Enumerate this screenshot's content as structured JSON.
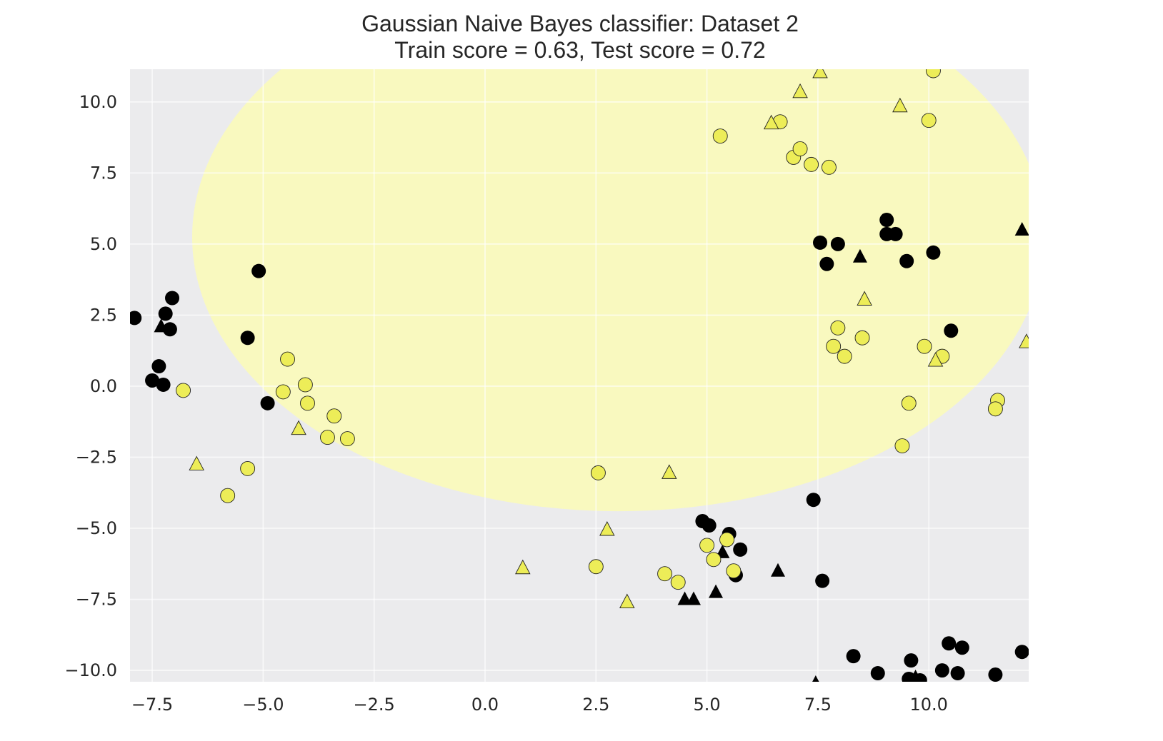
{
  "chart_data": {
    "type": "scatter",
    "title": "Gaussian Naive Bayes classifier: Dataset 2",
    "subtitle": "Train score = 0.63, Test score = 0.72",
    "xlabel": "",
    "ylabel": "",
    "xlim": [
      -8.0,
      12.25
    ],
    "ylim": [
      -10.4,
      11.15
    ],
    "xticks": [
      -7.5,
      -5.0,
      -2.5,
      0.0,
      2.5,
      5.0,
      7.5,
      10.0
    ],
    "xtick_labels": [
      "−7.5",
      "−5.0",
      "−2.5",
      "0.0",
      "2.5",
      "5.0",
      "7.5",
      "10.0"
    ],
    "yticks": [
      10.0,
      7.5,
      5.0,
      2.5,
      0.0,
      -2.5,
      -5.0,
      -7.5,
      -10.0
    ],
    "ytick_labels": [
      "10.0",
      "7.5",
      "5.0",
      "2.5",
      "0.0",
      "−2.5",
      "−5.0",
      "−7.5",
      "−10.0"
    ],
    "grid": true,
    "colors": {
      "plot_background": "#ebebed",
      "decision_region": "#f9f9bf",
      "grid": "#ffffff",
      "class_0": "#000000",
      "class_1": "#eded58",
      "marker_edge": "#222222"
    },
    "decision_region": {
      "shape": "ellipse",
      "center": [
        3.0,
        5.25
      ],
      "radius_x": 9.6,
      "radius_y": 9.65
    },
    "series": [
      {
        "marker": "circle",
        "color": "#000000",
        "points": [
          [
            -7.9,
            2.4
          ],
          [
            -7.2,
            2.55
          ],
          [
            -7.05,
            3.1
          ],
          [
            -7.1,
            2.0
          ],
          [
            -7.35,
            0.7
          ],
          [
            -7.5,
            0.2
          ],
          [
            -7.25,
            0.05
          ],
          [
            -5.1,
            4.05
          ],
          [
            -5.35,
            1.7
          ],
          [
            -4.9,
            -0.6
          ],
          [
            9.05,
            5.85
          ],
          [
            9.05,
            5.35
          ],
          [
            9.25,
            5.35
          ],
          [
            7.55,
            5.05
          ],
          [
            7.95,
            5.0
          ],
          [
            7.7,
            4.3
          ],
          [
            9.5,
            4.4
          ],
          [
            10.1,
            4.7
          ],
          [
            10.5,
            1.95
          ],
          [
            7.4,
            -4.0
          ],
          [
            4.9,
            -4.75
          ],
          [
            5.05,
            -4.9
          ],
          [
            5.5,
            -5.2
          ],
          [
            5.75,
            -5.75
          ],
          [
            5.65,
            -6.65
          ],
          [
            7.6,
            -6.85
          ],
          [
            8.3,
            -9.5
          ],
          [
            8.85,
            -10.1
          ],
          [
            9.55,
            -10.3
          ],
          [
            9.6,
            -9.65
          ],
          [
            9.8,
            -10.35
          ],
          [
            10.3,
            -10.0
          ],
          [
            10.45,
            -9.05
          ],
          [
            10.65,
            -10.1
          ],
          [
            10.75,
            -9.2
          ],
          [
            11.5,
            -10.15
          ],
          [
            12.1,
            -9.35
          ]
        ]
      },
      {
        "marker": "triangle",
        "color": "#000000",
        "points": [
          [
            -7.3,
            2.1
          ],
          [
            8.45,
            4.55
          ],
          [
            12.1,
            5.5
          ],
          [
            5.35,
            -5.85
          ],
          [
            4.5,
            -7.5
          ],
          [
            4.7,
            -7.5
          ],
          [
            5.2,
            -7.25
          ],
          [
            6.6,
            -6.5
          ],
          [
            7.45,
            -10.45
          ],
          [
            9.7,
            -10.25
          ]
        ]
      },
      {
        "marker": "circle",
        "color": "#eded58",
        "points": [
          [
            -6.8,
            -0.15
          ],
          [
            -4.45,
            0.95
          ],
          [
            -4.55,
            -0.2
          ],
          [
            -4.05,
            0.05
          ],
          [
            -4.0,
            -0.6
          ],
          [
            -3.4,
            -1.05
          ],
          [
            -3.55,
            -1.8
          ],
          [
            -3.1,
            -1.85
          ],
          [
            -5.35,
            -2.9
          ],
          [
            -5.8,
            -3.85
          ],
          [
            5.3,
            8.8
          ],
          [
            6.65,
            9.3
          ],
          [
            6.95,
            8.05
          ],
          [
            7.1,
            8.35
          ],
          [
            7.35,
            7.8
          ],
          [
            7.75,
            7.7
          ],
          [
            10.1,
            11.1
          ],
          [
            10.0,
            9.35
          ],
          [
            7.95,
            2.05
          ],
          [
            7.85,
            1.4
          ],
          [
            8.1,
            1.05
          ],
          [
            8.5,
            1.7
          ],
          [
            9.9,
            1.4
          ],
          [
            10.3,
            1.05
          ],
          [
            9.55,
            -0.6
          ],
          [
            9.4,
            -2.1
          ],
          [
            11.55,
            -0.5
          ],
          [
            11.5,
            -0.8
          ],
          [
            2.55,
            -3.05
          ],
          [
            2.5,
            -6.35
          ],
          [
            4.05,
            -6.6
          ],
          [
            4.35,
            -6.9
          ],
          [
            5.0,
            -5.6
          ],
          [
            5.15,
            -6.1
          ],
          [
            5.45,
            -5.4
          ],
          [
            5.6,
            -6.5
          ]
        ]
      },
      {
        "marker": "triangle",
        "color": "#eded58",
        "points": [
          [
            7.55,
            11.05
          ],
          [
            7.1,
            10.35
          ],
          [
            6.45,
            9.25
          ],
          [
            9.35,
            9.85
          ],
          [
            8.55,
            3.05
          ],
          [
            12.2,
            1.55
          ],
          [
            10.15,
            0.9
          ],
          [
            -4.2,
            -1.5
          ],
          [
            -6.5,
            -2.75
          ],
          [
            4.15,
            -3.05
          ],
          [
            2.75,
            -5.05
          ],
          [
            0.85,
            -6.4
          ],
          [
            3.2,
            -7.6
          ]
        ]
      }
    ]
  }
}
